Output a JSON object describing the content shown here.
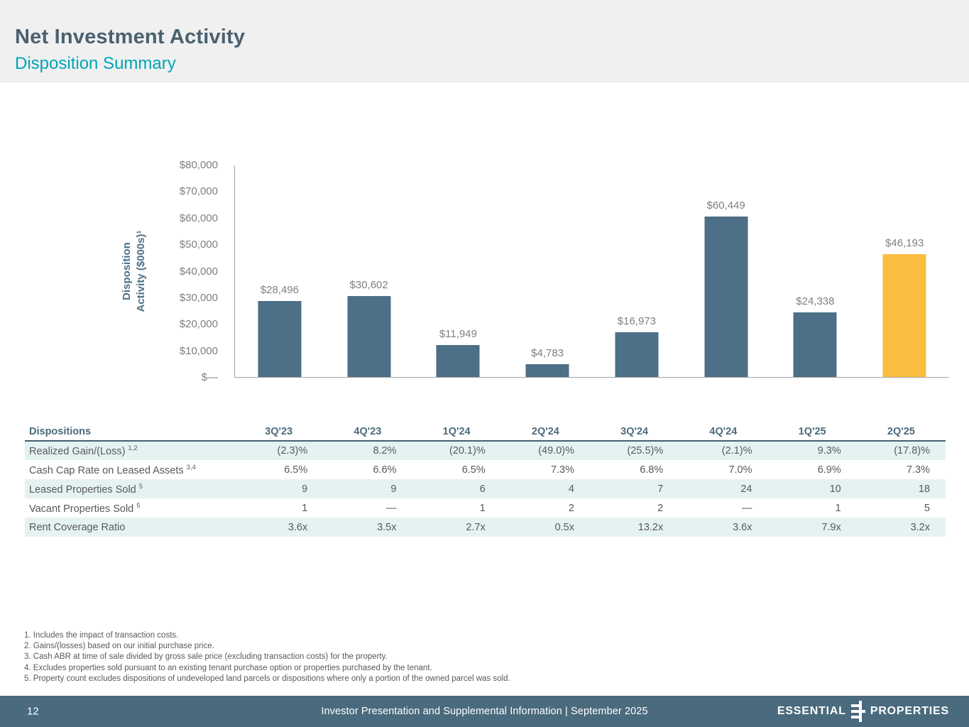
{
  "header": {
    "title": "Net Investment Activity",
    "subtitle": "Disposition Summary"
  },
  "chart_data": {
    "type": "bar",
    "categories": [
      "3Q'23",
      "4Q'23",
      "1Q'24",
      "2Q'24",
      "3Q'24",
      "4Q'24",
      "1Q'25",
      "2Q'25"
    ],
    "values": [
      28496,
      30602,
      11949,
      4783,
      16973,
      60449,
      24338,
      46193
    ],
    "bar_labels": [
      "$28,496",
      "$30,602",
      "$11,949",
      "$4,783",
      "$16,973",
      "$60,449",
      "$24,338",
      "$46,193"
    ],
    "title": "",
    "xlabel": "",
    "ylabel_line1": "Disposition",
    "ylabel_line2": "Activity ($000s)¹",
    "y_ticks": [
      "$80,000",
      "$70,000",
      "$60,000",
      "$50,000",
      "$40,000",
      "$30,000",
      "$20,000",
      "$10,000",
      "$—"
    ],
    "ylim": [
      0,
      80000
    ],
    "grid": "off",
    "legend": "none",
    "bar_color": "#4D6F87",
    "highlight_color": "#FBBD3F",
    "highlight_index": 7,
    "label_color": "#808080"
  },
  "table": {
    "first_header": "Dispositions",
    "quarter_headers": [
      "3Q'23",
      "4Q'23",
      "1Q'24",
      "2Q'24",
      "3Q'24",
      "4Q'24",
      "1Q'25",
      "2Q'25"
    ],
    "rows": [
      {
        "label": "Realized Gain/(Loss)",
        "sup": "1,2",
        "striped": true,
        "values": [
          "(2.3)%",
          "8.2%",
          "(20.1)%",
          "(49.0)%",
          "(25.5)%",
          "(2.1)%",
          "9.3%",
          "(17.8)%"
        ]
      },
      {
        "label": "Cash Cap Rate on Leased Assets",
        "sup": "3,4",
        "striped": false,
        "values": [
          "6.5%",
          "6.6%",
          "6.5%",
          "7.3%",
          "6.8%",
          "7.0%",
          "6.9%",
          "7.3%"
        ]
      },
      {
        "label": "Leased Properties Sold",
        "sup": "5",
        "striped": true,
        "values": [
          "9",
          "9",
          "6",
          "4",
          "7",
          "24",
          "10",
          "18"
        ]
      },
      {
        "label": "Vacant Properties Sold",
        "sup": "5",
        "striped": false,
        "values": [
          "1",
          "—",
          "1",
          "2",
          "2",
          "—",
          "1",
          "5"
        ]
      },
      {
        "label": "Rent Coverage Ratio",
        "sup": "",
        "striped": true,
        "values": [
          "3.6x",
          "3.5x",
          "2.7x",
          "0.5x",
          "13.2x",
          "3.6x",
          "7.9x",
          "3.2x"
        ]
      }
    ]
  },
  "footnotes": [
    "1. Includes the impact of transaction costs.",
    "2. Gains/(losses) based on our initial purchase price.",
    "3. Cash ABR at time of sale divided by gross sale price (excluding transaction costs) for the property.",
    "4. Excludes properties sold pursuant to an existing tenant purchase option or properties purchased by the tenant.",
    "5. Property count excludes dispositions of undeveloped land parcels or dispositions where only a portion of the owned parcel was sold."
  ],
  "footer": {
    "page": "12",
    "center": "Investor Presentation and Supplemental Information |  September 2025",
    "logo_left": "ESSENTIAL",
    "logo_right": "PROPERTIES"
  },
  "colors": {
    "title": "#4A616F",
    "subtitle_teal": "#00A5B5",
    "bar_slate": "#4D6F87",
    "bar_highlight": "#FBBD3F",
    "table_stripe": "#E4F3F1",
    "footer_bar": "#4A6A7D",
    "header_band": "#F0F0F1",
    "text_gray": "#595959"
  }
}
